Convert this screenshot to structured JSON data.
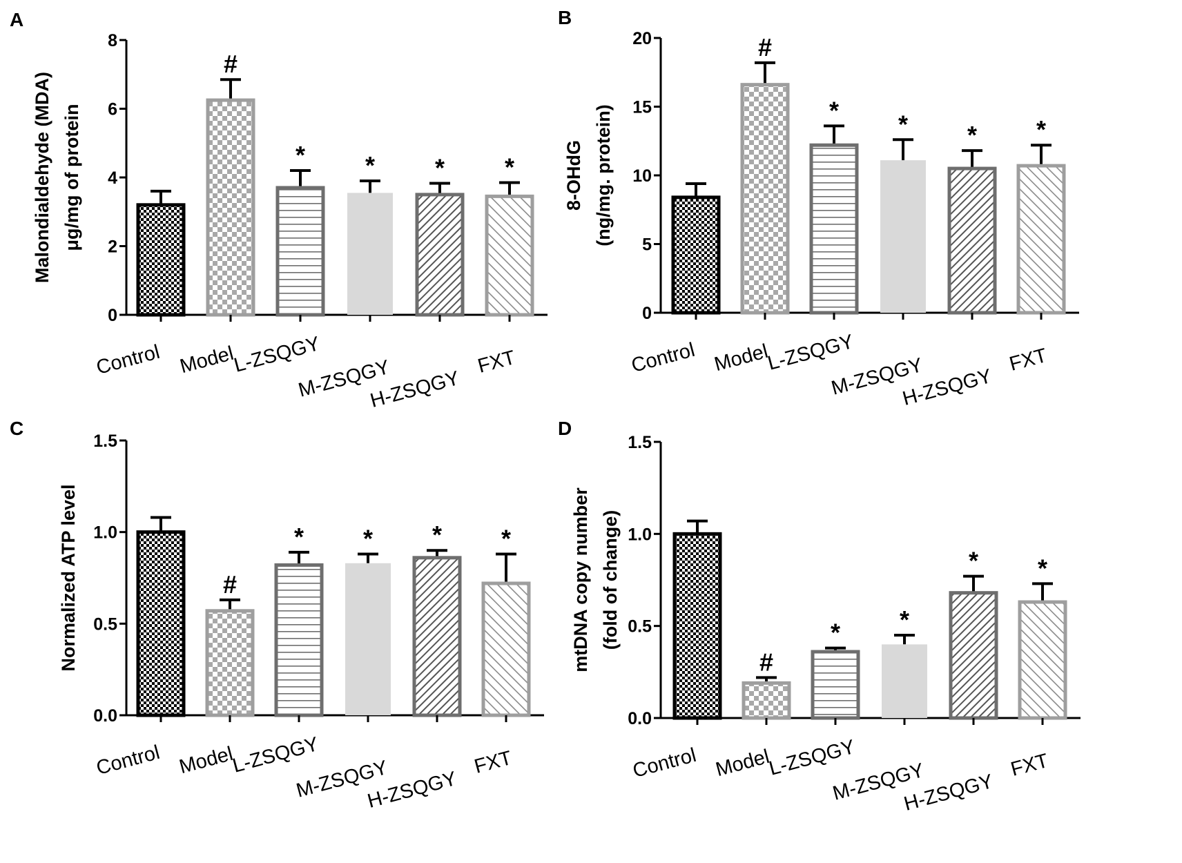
{
  "chart_data": [
    {
      "panel_label": "A",
      "type": "bar",
      "categories": [
        "Control",
        "Model",
        "L-ZSQGY",
        "M-ZSQGY",
        "H-ZSQGY",
        "FXT"
      ],
      "values": [
        3.2,
        6.25,
        3.7,
        3.55,
        3.5,
        3.45
      ],
      "errors": [
        0.4,
        0.6,
        0.5,
        0.35,
        0.33,
        0.4
      ],
      "significance": [
        "",
        "#",
        "*",
        "*",
        "*",
        "*"
      ],
      "ylabel_lines": [
        "Malondialdehyde  (MDA)",
        "μg/mg of protein"
      ],
      "ylim": [
        0,
        8
      ],
      "yticks": [
        "0",
        "2",
        "4",
        "6",
        "8"
      ]
    },
    {
      "panel_label": "B",
      "type": "bar",
      "categories": [
        "Control",
        "Model",
        "L-ZSQGY",
        "M-ZSQGY",
        "H-ZSQGY",
        "FXT"
      ],
      "values": [
        8.4,
        16.6,
        12.2,
        11.1,
        10.5,
        10.7
      ],
      "errors": [
        1.0,
        1.6,
        1.4,
        1.5,
        1.3,
        1.5
      ],
      "significance": [
        "",
        "#",
        "*",
        "*",
        "*",
        "*"
      ],
      "ylabel_lines": [
        "8-OHdG",
        "(ng/mg. protein)"
      ],
      "ylim": [
        0,
        20
      ],
      "yticks": [
        "0",
        "5",
        "10",
        "15",
        "20"
      ]
    },
    {
      "panel_label": "C",
      "type": "bar",
      "categories": [
        "Control",
        "Model",
        "L-ZSQGY",
        "M-ZSQGY",
        "H-ZSQGY",
        "FXT"
      ],
      "values": [
        1.0,
        0.57,
        0.82,
        0.83,
        0.86,
        0.72
      ],
      "errors": [
        0.08,
        0.06,
        0.07,
        0.05,
        0.04,
        0.16
      ],
      "significance": [
        "",
        "#",
        "*",
        "*",
        "*",
        "*"
      ],
      "ylabel_lines": [
        "Normalized ATP level"
      ],
      "ylim": [
        0,
        1.5
      ],
      "yticks": [
        "0.0",
        "0.5",
        "1.0",
        "1.5"
      ]
    },
    {
      "panel_label": "D",
      "type": "bar",
      "categories": [
        "Control",
        "Model",
        "L-ZSQGY",
        "M-ZSQGY",
        "H-ZSQGY",
        "FXT"
      ],
      "values": [
        1.0,
        0.19,
        0.36,
        0.4,
        0.68,
        0.63
      ],
      "errors": [
        0.07,
        0.03,
        0.02,
        0.05,
        0.09,
        0.1
      ],
      "significance": [
        "",
        "#",
        "*",
        "*",
        "*",
        "*"
      ],
      "ylabel_lines": [
        "mtDNA copy number",
        "(fold of change)"
      ],
      "ylim": [
        0,
        1.5
      ],
      "yticks": [
        "0.0",
        "0.5",
        "1.0",
        "1.5"
      ]
    }
  ],
  "bar_styles": [
    {
      "pattern": "check-small",
      "stroke": "#000000"
    },
    {
      "pattern": "check-large",
      "stroke": "#9e9e9e"
    },
    {
      "pattern": "horizontal-lines",
      "stroke": "#6e6e6e"
    },
    {
      "pattern": "solid-light",
      "stroke": "#d9d9d9"
    },
    {
      "pattern": "diagonal-dense",
      "stroke": "#6e6e6e"
    },
    {
      "pattern": "diagonal-sparse",
      "stroke": "#9e9e9e"
    }
  ]
}
